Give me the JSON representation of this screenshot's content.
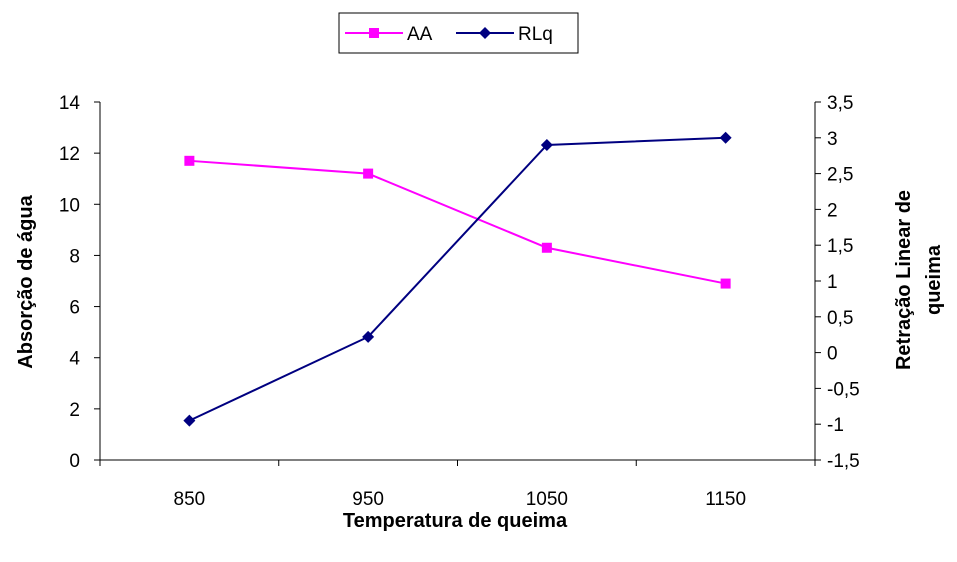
{
  "chart_data": {
    "type": "line",
    "categories": [
      "850",
      "950",
      "1050",
      "1150"
    ],
    "xlabel": "Temperatura de queima",
    "ylabel_left": "Absorção de água",
    "ylabel_right": [
      "Retração Linear de",
      "queima"
    ],
    "y_left": {
      "range": [
        0,
        14
      ],
      "ticks": [
        "0",
        "2",
        "4",
        "6",
        "8",
        "10",
        "12",
        "14"
      ]
    },
    "y_right": {
      "range": [
        -1.5,
        3.5
      ],
      "ticks": [
        "-1,5",
        "-1",
        "-0,5",
        "0",
        "0,5",
        "1",
        "1,5",
        "2",
        "2,5",
        "3",
        "3,5"
      ]
    },
    "series": [
      {
        "name": "AA",
        "axis": "left",
        "marker": "square",
        "color": "#ff00ff",
        "values": [
          11.7,
          11.2,
          8.3,
          6.9
        ]
      },
      {
        "name": "RLq",
        "axis": "right",
        "marker": "diamond",
        "color": "#000080",
        "values": [
          -0.95,
          0.22,
          2.9,
          3.0
        ]
      }
    ],
    "legend": {
      "position": "top-center"
    },
    "grid": false
  }
}
